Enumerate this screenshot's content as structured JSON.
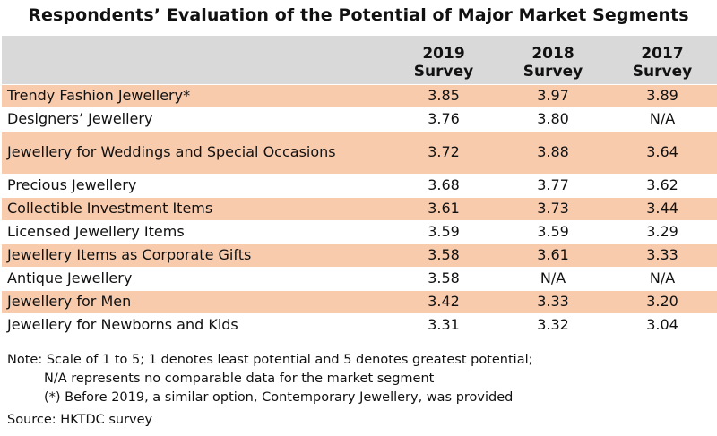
{
  "title": "Respondents’ Evaluation of the Potential of Major Market Segments",
  "chart_data": {
    "type": "table",
    "columns": [
      {
        "year": "2019",
        "label": "Survey"
      },
      {
        "year": "2018",
        "label": "Survey"
      },
      {
        "year": "2017",
        "label": "Survey"
      }
    ],
    "rows": [
      {
        "segment": "Trendy Fashion Jewellery*",
        "values": [
          "3.85",
          "3.97",
          "3.89"
        ]
      },
      {
        "segment": "Designers’ Jewellery",
        "values": [
          "3.76",
          "3.80",
          "N/A"
        ]
      },
      {
        "segment": "Jewellery for Weddings and Special Occasions",
        "values": [
          "3.72",
          "3.88",
          "3.64"
        ]
      },
      {
        "segment": "Precious Jewellery",
        "values": [
          "3.68",
          "3.77",
          "3.62"
        ]
      },
      {
        "segment": "Collectible Investment Items",
        "values": [
          "3.61",
          "3.73",
          "3.44"
        ]
      },
      {
        "segment": "Licensed Jewellery Items",
        "values": [
          "3.59",
          "3.59",
          "3.29"
        ]
      },
      {
        "segment": "Jewellery Items as Corporate Gifts",
        "values": [
          "3.58",
          "3.61",
          "3.33"
        ]
      },
      {
        "segment": "Antique Jewellery",
        "values": [
          "3.58",
          "N/A",
          "N/A"
        ]
      },
      {
        "segment": "Jewellery for Men",
        "values": [
          "3.42",
          "3.33",
          "3.20"
        ]
      },
      {
        "segment": "Jewellery for Newborns and Kids",
        "values": [
          "3.31",
          "3.32",
          "3.04"
        ]
      }
    ]
  },
  "notes": {
    "line1": "Note: Scale of 1 to 5; 1 denotes least potential and 5 denotes greatest potential;",
    "line2": "N/A represents no comparable data for the market segment",
    "line3": "(*) Before 2019, a similar option, Contemporary Jewellery, was provided"
  },
  "source": "Source: HKTDC survey",
  "colors": {
    "header_bg": "#d9d9d9",
    "row_shade": "#f8cbad"
  }
}
